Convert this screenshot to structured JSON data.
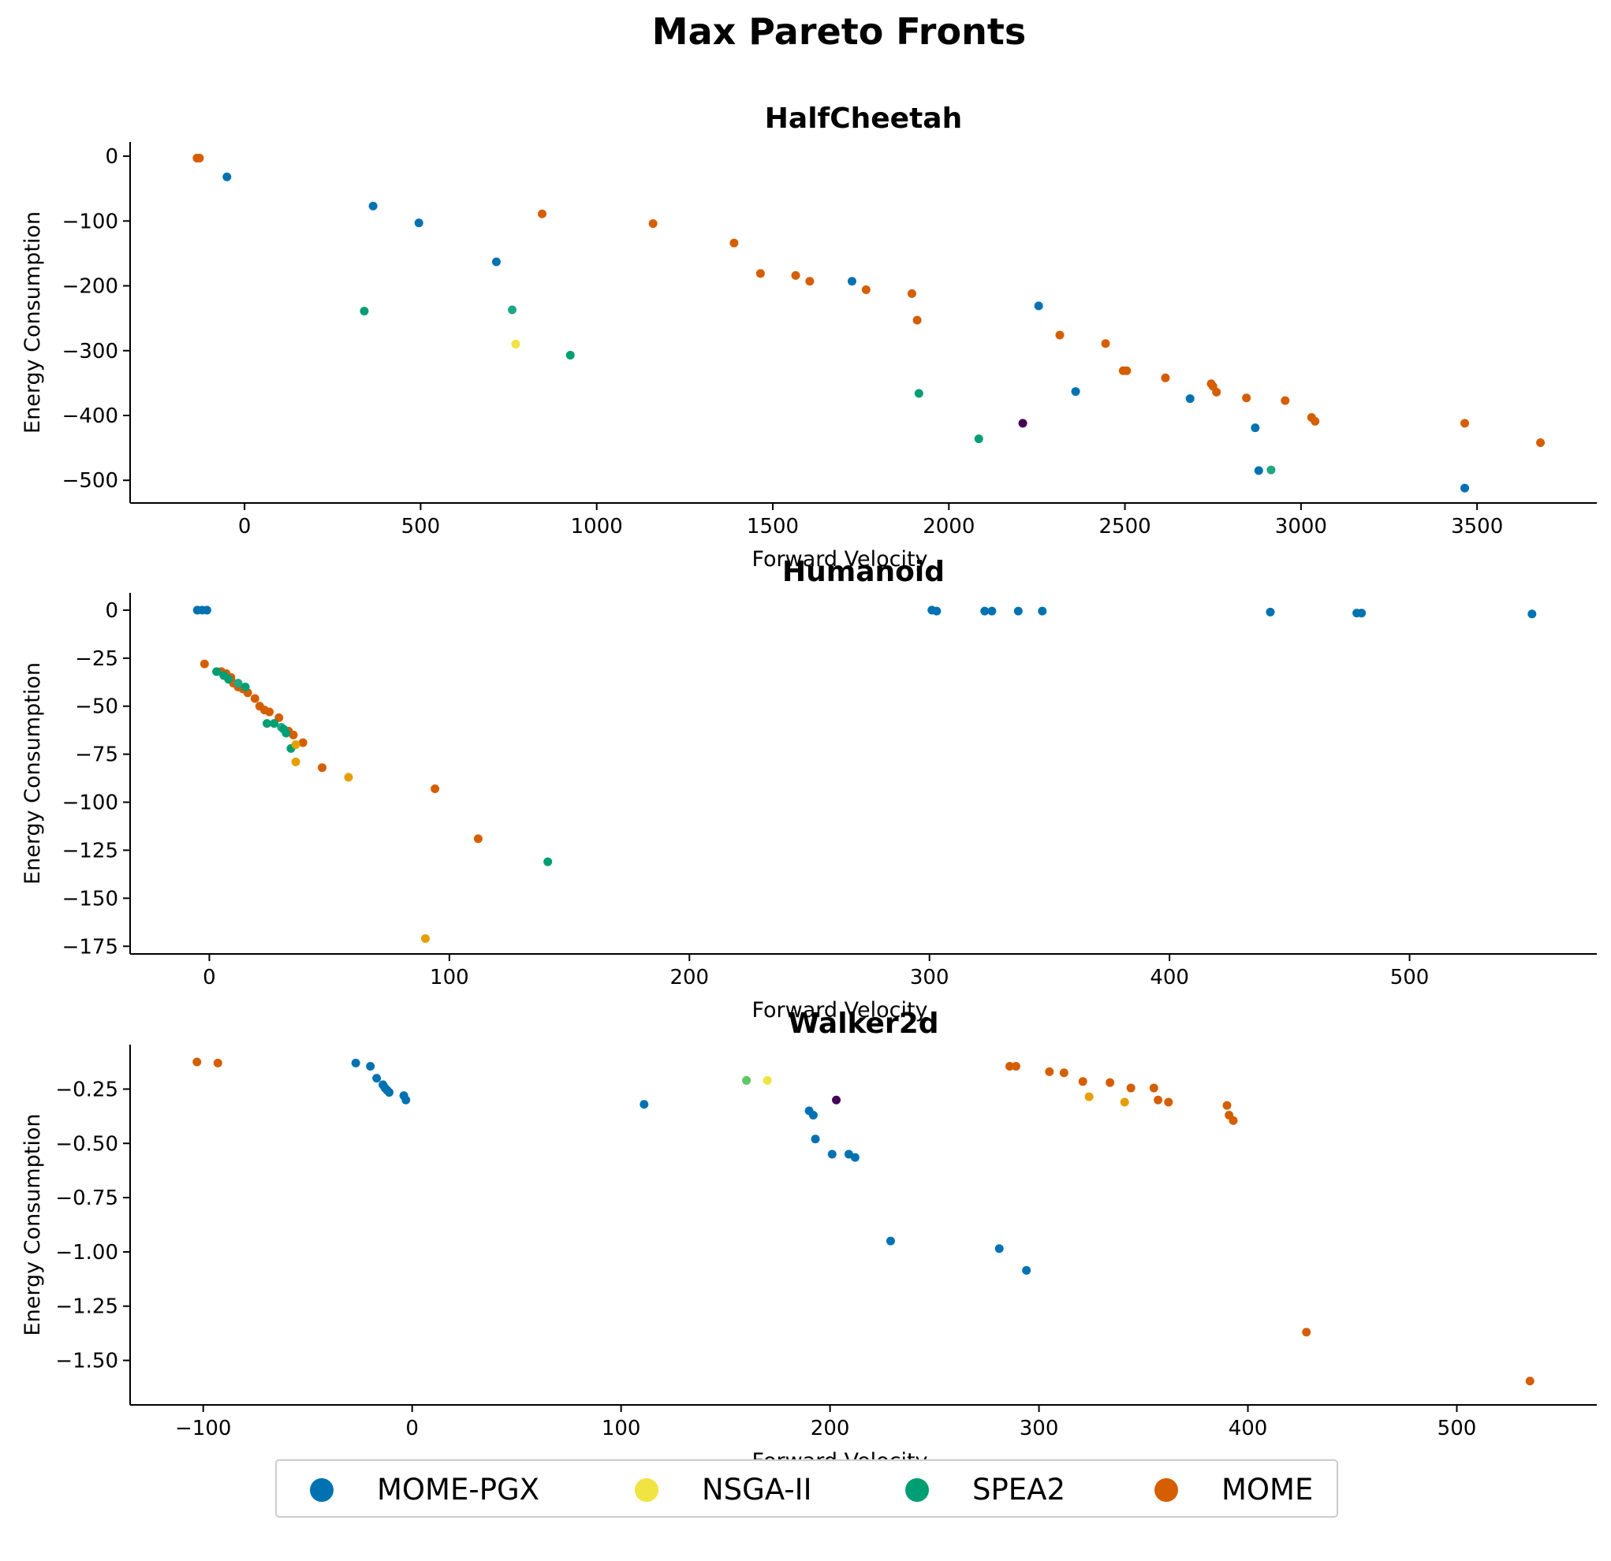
{
  "chart_data": {
    "title": "Max Pareto Fronts",
    "type": "scatter",
    "legend": {
      "placement": "bottom-center",
      "entries": [
        {
          "name": "MOME-PGX",
          "color": "#0072b2"
        },
        {
          "name": "NSGA-II",
          "color": "#f0e442"
        },
        {
          "name": "SPEA2",
          "color": "#009e73"
        },
        {
          "name": "MOME",
          "color": "#d55e00"
        }
      ]
    },
    "subplots": [
      {
        "title": "HalfCheetah",
        "xlabel": "Forward Velocity",
        "ylabel": "Energy Consumption",
        "xlim": [
          -325,
          3840
        ],
        "ylim": [
          -535,
          22
        ],
        "xticks": [
          "0",
          "500",
          "1000",
          "1500",
          "2000",
          "2500",
          "3000",
          "3500"
        ],
        "yticks": [
          "0",
          "−100",
          "−200",
          "−300",
          "−400",
          "−500"
        ],
        "xtick_values": [
          0,
          500,
          1000,
          1500,
          2000,
          2500,
          3000,
          3500
        ],
        "ytick_values": [
          0,
          -100,
          -200,
          -300,
          -400,
          -500
        ],
        "points": [
          {
            "x": -135,
            "y": -3,
            "c": "#d55e00"
          },
          {
            "x": -128,
            "y": -3,
            "c": "#d55e00"
          },
          {
            "x": -50,
            "y": -32,
            "c": "#0072b2"
          },
          {
            "x": 365,
            "y": -77,
            "c": "#0072b2"
          },
          {
            "x": 495,
            "y": -103,
            "c": "#0072b2"
          },
          {
            "x": 715,
            "y": -163,
            "c": "#0072b2"
          },
          {
            "x": 845,
            "y": -89,
            "c": "#d55e00"
          },
          {
            "x": 1160,
            "y": -104,
            "c": "#d55e00"
          },
          {
            "x": 1390,
            "y": -134,
            "c": "#d55e00"
          },
          {
            "x": 1465,
            "y": -181,
            "c": "#d55e00"
          },
          {
            "x": 1565,
            "y": -184,
            "c": "#d55e00"
          },
          {
            "x": 1605,
            "y": -193,
            "c": "#d55e00"
          },
          {
            "x": 1725,
            "y": -193,
            "c": "#0072b2"
          },
          {
            "x": 1765,
            "y": -206,
            "c": "#d55e00"
          },
          {
            "x": 1895,
            "y": -212,
            "c": "#d55e00"
          },
          {
            "x": 1910,
            "y": -253,
            "c": "#d55e00"
          },
          {
            "x": 2255,
            "y": -231,
            "c": "#0072b2"
          },
          {
            "x": 2315,
            "y": -276,
            "c": "#d55e00"
          },
          {
            "x": 2445,
            "y": -289,
            "c": "#d55e00"
          },
          {
            "x": 2495,
            "y": -331,
            "c": "#d55e00"
          },
          {
            "x": 2505,
            "y": -331,
            "c": "#d55e00"
          },
          {
            "x": 2615,
            "y": -342,
            "c": "#d55e00"
          },
          {
            "x": 2745,
            "y": -351,
            "c": "#d55e00"
          },
          {
            "x": 2750,
            "y": -355,
            "c": "#d55e00"
          },
          {
            "x": 2760,
            "y": -364,
            "c": "#d55e00"
          },
          {
            "x": 2845,
            "y": -373,
            "c": "#d55e00"
          },
          {
            "x": 2955,
            "y": -377,
            "c": "#d55e00"
          },
          {
            "x": 3030,
            "y": -403,
            "c": "#d55e00"
          },
          {
            "x": 3040,
            "y": -409,
            "c": "#d55e00"
          },
          {
            "x": 3465,
            "y": -412,
            "c": "#d55e00"
          },
          {
            "x": 3680,
            "y": -442,
            "c": "#d55e00"
          },
          {
            "x": 2360,
            "y": -363,
            "c": "#0072b2"
          },
          {
            "x": 2685,
            "y": -374,
            "c": "#0072b2"
          },
          {
            "x": 2870,
            "y": -419,
            "c": "#0072b2"
          },
          {
            "x": 2880,
            "y": -485,
            "c": "#0072b2"
          },
          {
            "x": 3465,
            "y": -512,
            "c": "#0072b2"
          },
          {
            "x": 340,
            "y": -239,
            "c": "#009e73"
          },
          {
            "x": 760,
            "y": -237,
            "c": "#21a685"
          },
          {
            "x": 925,
            "y": -307,
            "c": "#009e73"
          },
          {
            "x": 1915,
            "y": -366,
            "c": "#009e73"
          },
          {
            "x": 2085,
            "y": -436,
            "c": "#009e73"
          },
          {
            "x": 2915,
            "y": -484,
            "c": "#21a685"
          },
          {
            "x": 770,
            "y": -290,
            "c": "#f0e442"
          },
          {
            "x": 2210,
            "y": -412,
            "c": "#440154"
          }
        ]
      },
      {
        "title": "Humanoid",
        "xlabel": "Forward Velocity",
        "ylabel": "Energy Consumption",
        "xlim": [
          -33,
          578
        ],
        "ylim": [
          -179,
          9
        ],
        "xticks": [
          "0",
          "100",
          "200",
          "300",
          "400",
          "500"
        ],
        "yticks": [
          "0",
          "−25",
          "−50",
          "−75",
          "−100",
          "−125",
          "−150",
          "−175"
        ],
        "xtick_values": [
          0,
          100,
          200,
          300,
          400,
          500
        ],
        "ytick_values": [
          0,
          -25,
          -50,
          -75,
          -100,
          -125,
          -150,
          -175
        ],
        "points": [
          {
            "x": -5,
            "y": 0,
            "c": "#0072b2"
          },
          {
            "x": -3,
            "y": 0,
            "c": "#0072b2"
          },
          {
            "x": -1,
            "y": 0,
            "c": "#0072b2"
          },
          {
            "x": 301,
            "y": 0,
            "c": "#0072b2"
          },
          {
            "x": 303,
            "y": -0.5,
            "c": "#0072b2"
          },
          {
            "x": 323,
            "y": -0.5,
            "c": "#0072b2"
          },
          {
            "x": 326,
            "y": -0.5,
            "c": "#0072b2"
          },
          {
            "x": 337,
            "y": -0.5,
            "c": "#0072b2"
          },
          {
            "x": 347,
            "y": -0.5,
            "c": "#0072b2"
          },
          {
            "x": 442,
            "y": -1,
            "c": "#0072b2"
          },
          {
            "x": 478,
            "y": -1.5,
            "c": "#0072b2"
          },
          {
            "x": 480,
            "y": -1.5,
            "c": "#0072b2"
          },
          {
            "x": 551,
            "y": -2,
            "c": "#0072b2"
          },
          {
            "x": -2,
            "y": -28,
            "c": "#d55e00"
          },
          {
            "x": 5,
            "y": -32,
            "c": "#d55e00"
          },
          {
            "x": 7,
            "y": -33,
            "c": "#d55e00"
          },
          {
            "x": 9,
            "y": -35,
            "c": "#d55e00"
          },
          {
            "x": 10,
            "y": -38,
            "c": "#d55e00"
          },
          {
            "x": 12,
            "y": -40,
            "c": "#d55e00"
          },
          {
            "x": 14,
            "y": -41,
            "c": "#d55e00"
          },
          {
            "x": 16,
            "y": -43,
            "c": "#d55e00"
          },
          {
            "x": 19,
            "y": -46,
            "c": "#d55e00"
          },
          {
            "x": 21,
            "y": -50,
            "c": "#d55e00"
          },
          {
            "x": 23,
            "y": -52,
            "c": "#d55e00"
          },
          {
            "x": 25,
            "y": -53,
            "c": "#d55e00"
          },
          {
            "x": 29,
            "y": -56,
            "c": "#d55e00"
          },
          {
            "x": 33,
            "y": -63,
            "c": "#d55e00"
          },
          {
            "x": 35,
            "y": -65,
            "c": "#d55e00"
          },
          {
            "x": 39,
            "y": -69,
            "c": "#d55e00"
          },
          {
            "x": 47,
            "y": -82,
            "c": "#d55e00"
          },
          {
            "x": 94,
            "y": -93,
            "c": "#d55e00"
          },
          {
            "x": 112,
            "y": -119,
            "c": "#d55e00"
          },
          {
            "x": 3,
            "y": -32,
            "c": "#009e73"
          },
          {
            "x": 6,
            "y": -34,
            "c": "#009e73"
          },
          {
            "x": 8,
            "y": -36,
            "c": "#009e73"
          },
          {
            "x": 12,
            "y": -38,
            "c": "#21a685"
          },
          {
            "x": 15,
            "y": -40,
            "c": "#009e73"
          },
          {
            "x": 24,
            "y": -59,
            "c": "#009e73"
          },
          {
            "x": 27,
            "y": -59,
            "c": "#009e73"
          },
          {
            "x": 30,
            "y": -61,
            "c": "#21a685"
          },
          {
            "x": 31,
            "y": -62,
            "c": "#009e73"
          },
          {
            "x": 32,
            "y": -64,
            "c": "#009e73"
          },
          {
            "x": 34,
            "y": -72,
            "c": "#009e73"
          },
          {
            "x": 141,
            "y": -131,
            "c": "#009e73"
          },
          {
            "x": 36,
            "y": -70,
            "c": "#e69f00"
          },
          {
            "x": 36,
            "y": -79,
            "c": "#e69f00"
          },
          {
            "x": 58,
            "y": -87,
            "c": "#e69f00"
          },
          {
            "x": 90,
            "y": -171,
            "c": "#e69f00"
          }
        ]
      },
      {
        "title": "Walker2d",
        "xlabel": "Forward Velocity",
        "ylabel": "Energy Consumption",
        "xlim": [
          -135,
          567
        ],
        "ylim": [
          -1.705,
          -0.045
        ],
        "xticks": [
          "−100",
          "0",
          "100",
          "200",
          "300",
          "400",
          "500"
        ],
        "yticks": [
          "−0.25",
          "−0.50",
          "−0.75",
          "−1.00",
          "−1.25",
          "−1.50"
        ],
        "xtick_values": [
          -100,
          0,
          100,
          200,
          300,
          400,
          500
        ],
        "ytick_values": [
          -0.25,
          -0.5,
          -0.75,
          -1.0,
          -1.25,
          -1.5
        ],
        "points": [
          {
            "x": -103,
            "y": -0.125,
            "c": "#d55e00"
          },
          {
            "x": -93,
            "y": -0.13,
            "c": "#d55e00"
          },
          {
            "x": -27,
            "y": -0.13,
            "c": "#0072b2"
          },
          {
            "x": -20,
            "y": -0.145,
            "c": "#0072b2"
          },
          {
            "x": -17,
            "y": -0.2,
            "c": "#0072b2"
          },
          {
            "x": -14,
            "y": -0.23,
            "c": "#0072b2"
          },
          {
            "x": -13,
            "y": -0.245,
            "c": "#0072b2"
          },
          {
            "x": -12,
            "y": -0.255,
            "c": "#0072b2"
          },
          {
            "x": -11,
            "y": -0.265,
            "c": "#0072b2"
          },
          {
            "x": -4,
            "y": -0.28,
            "c": "#0072b2"
          },
          {
            "x": -3,
            "y": -0.3,
            "c": "#0072b2"
          },
          {
            "x": 111,
            "y": -0.32,
            "c": "#0072b2"
          },
          {
            "x": 190,
            "y": -0.35,
            "c": "#0072b2"
          },
          {
            "x": 192,
            "y": -0.37,
            "c": "#0072b2"
          },
          {
            "x": 193,
            "y": -0.48,
            "c": "#0072b2"
          },
          {
            "x": 201,
            "y": -0.55,
            "c": "#0072b2"
          },
          {
            "x": 209,
            "y": -0.55,
            "c": "#0072b2"
          },
          {
            "x": 212,
            "y": -0.565,
            "c": "#0072b2"
          },
          {
            "x": 229,
            "y": -0.95,
            "c": "#0072b2"
          },
          {
            "x": 281,
            "y": -0.985,
            "c": "#0072b2"
          },
          {
            "x": 294,
            "y": -1.085,
            "c": "#0072b2"
          },
          {
            "x": 160,
            "y": -0.21,
            "c": "#5ec962"
          },
          {
            "x": 170,
            "y": -0.21,
            "c": "#f0e442"
          },
          {
            "x": 203,
            "y": -0.3,
            "c": "#440154"
          },
          {
            "x": 286,
            "y": -0.145,
            "c": "#d55e00"
          },
          {
            "x": 289,
            "y": -0.145,
            "c": "#d55e00"
          },
          {
            "x": 305,
            "y": -0.17,
            "c": "#d55e00"
          },
          {
            "x": 312,
            "y": -0.175,
            "c": "#d55e00"
          },
          {
            "x": 321,
            "y": -0.215,
            "c": "#d55e00"
          },
          {
            "x": 334,
            "y": -0.22,
            "c": "#d55e00"
          },
          {
            "x": 344,
            "y": -0.245,
            "c": "#d55e00"
          },
          {
            "x": 355,
            "y": -0.245,
            "c": "#d55e00"
          },
          {
            "x": 357,
            "y": -0.3,
            "c": "#d55e00"
          },
          {
            "x": 362,
            "y": -0.31,
            "c": "#d55e00"
          },
          {
            "x": 390,
            "y": -0.325,
            "c": "#d55e00"
          },
          {
            "x": 391,
            "y": -0.37,
            "c": "#d55e00"
          },
          {
            "x": 393,
            "y": -0.395,
            "c": "#d55e00"
          },
          {
            "x": 428,
            "y": -1.37,
            "c": "#d55e00"
          },
          {
            "x": 535,
            "y": -1.595,
            "c": "#d55e00"
          },
          {
            "x": 324,
            "y": -0.285,
            "c": "#e69f00"
          },
          {
            "x": 341,
            "y": -0.31,
            "c": "#e69f00"
          }
        ]
      }
    ]
  }
}
